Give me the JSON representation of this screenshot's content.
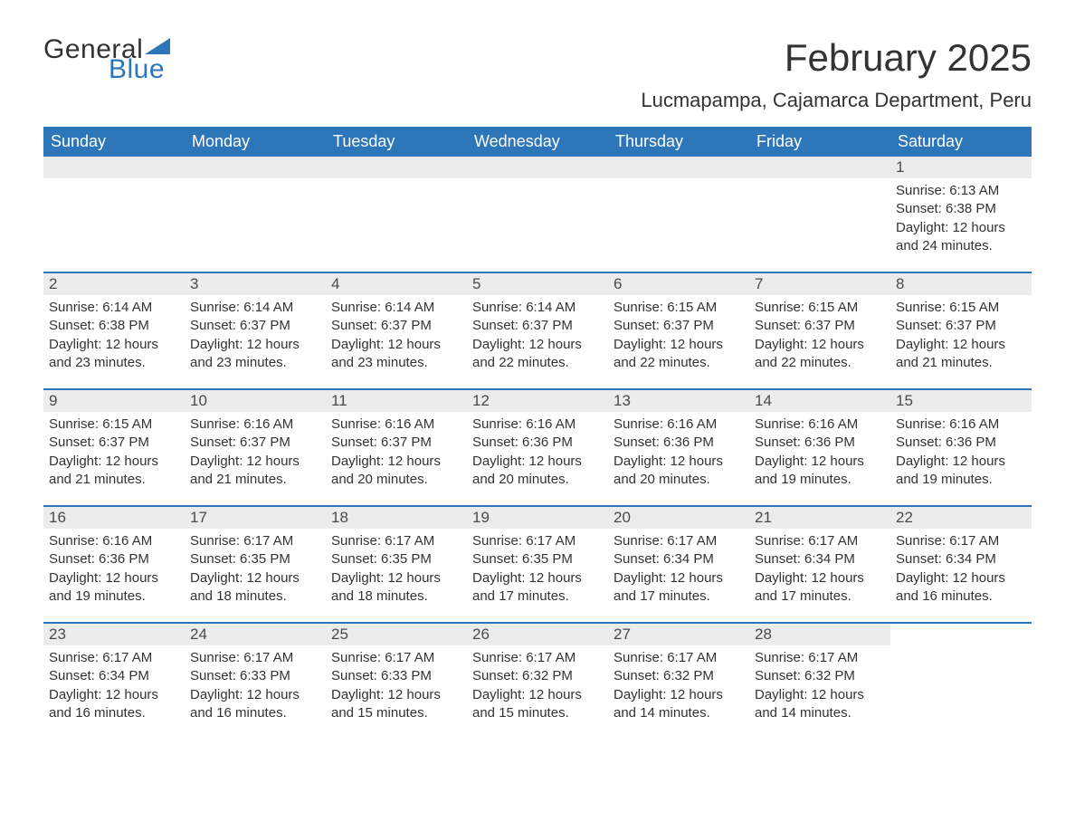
{
  "branding": {
    "word1": "General",
    "word2": "Blue",
    "text_color": "#333333",
    "accent_color": "#2d76b9",
    "triangle_color": "#2d76b9"
  },
  "title": {
    "month_year": "February 2025",
    "location": "Lucmapampa, Cajamarca Department, Peru",
    "title_fontsize_pt": 32,
    "location_fontsize_pt": 17,
    "text_color": "#333333"
  },
  "calendar": {
    "type": "table",
    "header_bg": "#2d76b9",
    "header_text_color": "#ffffff",
    "week_divider_color": "#2d76b9",
    "daynum_bar_bg": "#ececec",
    "body_text_color": "#333333",
    "background_color": "#ffffff",
    "columns": [
      "Sunday",
      "Monday",
      "Tuesday",
      "Wednesday",
      "Thursday",
      "Friday",
      "Saturday"
    ],
    "weeks": [
      [
        {
          "day": "",
          "lines": []
        },
        {
          "day": "",
          "lines": []
        },
        {
          "day": "",
          "lines": []
        },
        {
          "day": "",
          "lines": []
        },
        {
          "day": "",
          "lines": []
        },
        {
          "day": "",
          "lines": []
        },
        {
          "day": "1",
          "lines": [
            "Sunrise: 6:13 AM",
            "Sunset: 6:38 PM",
            "Daylight: 12 hours and 24 minutes."
          ]
        }
      ],
      [
        {
          "day": "2",
          "lines": [
            "Sunrise: 6:14 AM",
            "Sunset: 6:38 PM",
            "Daylight: 12 hours and 23 minutes."
          ]
        },
        {
          "day": "3",
          "lines": [
            "Sunrise: 6:14 AM",
            "Sunset: 6:37 PM",
            "Daylight: 12 hours and 23 minutes."
          ]
        },
        {
          "day": "4",
          "lines": [
            "Sunrise: 6:14 AM",
            "Sunset: 6:37 PM",
            "Daylight: 12 hours and 23 minutes."
          ]
        },
        {
          "day": "5",
          "lines": [
            "Sunrise: 6:14 AM",
            "Sunset: 6:37 PM",
            "Daylight: 12 hours and 22 minutes."
          ]
        },
        {
          "day": "6",
          "lines": [
            "Sunrise: 6:15 AM",
            "Sunset: 6:37 PM",
            "Daylight: 12 hours and 22 minutes."
          ]
        },
        {
          "day": "7",
          "lines": [
            "Sunrise: 6:15 AM",
            "Sunset: 6:37 PM",
            "Daylight: 12 hours and 22 minutes."
          ]
        },
        {
          "day": "8",
          "lines": [
            "Sunrise: 6:15 AM",
            "Sunset: 6:37 PM",
            "Daylight: 12 hours and 21 minutes."
          ]
        }
      ],
      [
        {
          "day": "9",
          "lines": [
            "Sunrise: 6:15 AM",
            "Sunset: 6:37 PM",
            "Daylight: 12 hours and 21 minutes."
          ]
        },
        {
          "day": "10",
          "lines": [
            "Sunrise: 6:16 AM",
            "Sunset: 6:37 PM",
            "Daylight: 12 hours and 21 minutes."
          ]
        },
        {
          "day": "11",
          "lines": [
            "Sunrise: 6:16 AM",
            "Sunset: 6:37 PM",
            "Daylight: 12 hours and 20 minutes."
          ]
        },
        {
          "day": "12",
          "lines": [
            "Sunrise: 6:16 AM",
            "Sunset: 6:36 PM",
            "Daylight: 12 hours and 20 minutes."
          ]
        },
        {
          "day": "13",
          "lines": [
            "Sunrise: 6:16 AM",
            "Sunset: 6:36 PM",
            "Daylight: 12 hours and 20 minutes."
          ]
        },
        {
          "day": "14",
          "lines": [
            "Sunrise: 6:16 AM",
            "Sunset: 6:36 PM",
            "Daylight: 12 hours and 19 minutes."
          ]
        },
        {
          "day": "15",
          "lines": [
            "Sunrise: 6:16 AM",
            "Sunset: 6:36 PM",
            "Daylight: 12 hours and 19 minutes."
          ]
        }
      ],
      [
        {
          "day": "16",
          "lines": [
            "Sunrise: 6:16 AM",
            "Sunset: 6:36 PM",
            "Daylight: 12 hours and 19 minutes."
          ]
        },
        {
          "day": "17",
          "lines": [
            "Sunrise: 6:17 AM",
            "Sunset: 6:35 PM",
            "Daylight: 12 hours and 18 minutes."
          ]
        },
        {
          "day": "18",
          "lines": [
            "Sunrise: 6:17 AM",
            "Sunset: 6:35 PM",
            "Daylight: 12 hours and 18 minutes."
          ]
        },
        {
          "day": "19",
          "lines": [
            "Sunrise: 6:17 AM",
            "Sunset: 6:35 PM",
            "Daylight: 12 hours and 17 minutes."
          ]
        },
        {
          "day": "20",
          "lines": [
            "Sunrise: 6:17 AM",
            "Sunset: 6:34 PM",
            "Daylight: 12 hours and 17 minutes."
          ]
        },
        {
          "day": "21",
          "lines": [
            "Sunrise: 6:17 AM",
            "Sunset: 6:34 PM",
            "Daylight: 12 hours and 17 minutes."
          ]
        },
        {
          "day": "22",
          "lines": [
            "Sunrise: 6:17 AM",
            "Sunset: 6:34 PM",
            "Daylight: 12 hours and 16 minutes."
          ]
        }
      ],
      [
        {
          "day": "23",
          "lines": [
            "Sunrise: 6:17 AM",
            "Sunset: 6:34 PM",
            "Daylight: 12 hours and 16 minutes."
          ]
        },
        {
          "day": "24",
          "lines": [
            "Sunrise: 6:17 AM",
            "Sunset: 6:33 PM",
            "Daylight: 12 hours and 16 minutes."
          ]
        },
        {
          "day": "25",
          "lines": [
            "Sunrise: 6:17 AM",
            "Sunset: 6:33 PM",
            "Daylight: 12 hours and 15 minutes."
          ]
        },
        {
          "day": "26",
          "lines": [
            "Sunrise: 6:17 AM",
            "Sunset: 6:32 PM",
            "Daylight: 12 hours and 15 minutes."
          ]
        },
        {
          "day": "27",
          "lines": [
            "Sunrise: 6:17 AM",
            "Sunset: 6:32 PM",
            "Daylight: 12 hours and 14 minutes."
          ]
        },
        {
          "day": "28",
          "lines": [
            "Sunrise: 6:17 AM",
            "Sunset: 6:32 PM",
            "Daylight: 12 hours and 14 minutes."
          ]
        },
        {
          "day": "",
          "lines": []
        }
      ]
    ]
  }
}
